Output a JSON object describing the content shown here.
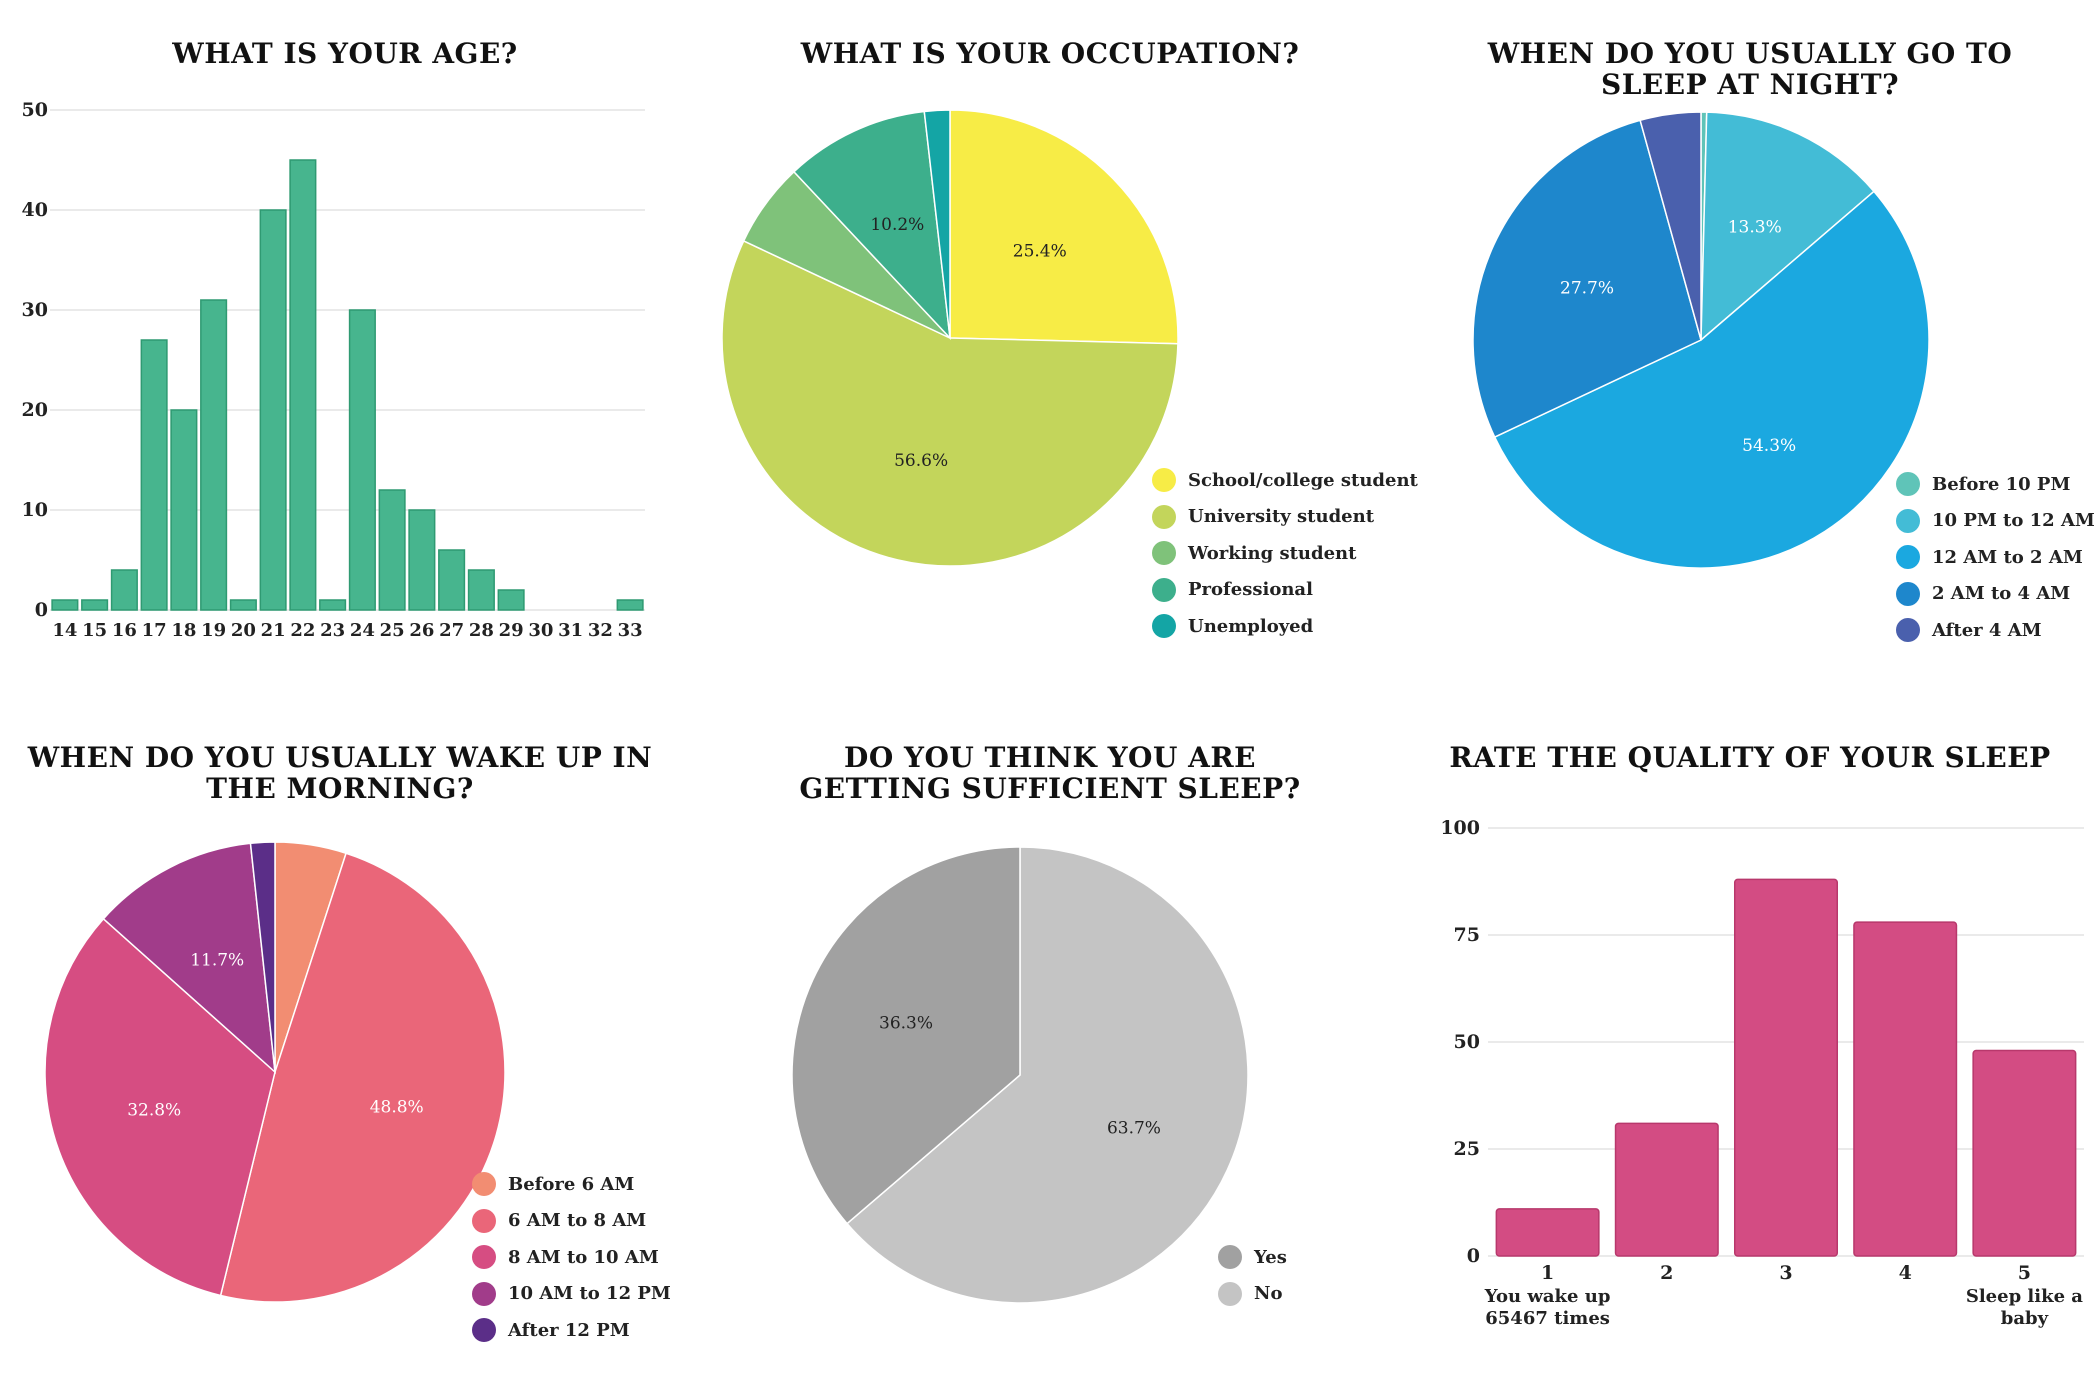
{
  "chart_data": [
    {
      "type": "bar",
      "title": "WHAT IS YOUR AGE?",
      "categories": [
        "14",
        "15",
        "16",
        "17",
        "18",
        "19",
        "20",
        "21",
        "22",
        "23",
        "24",
        "25",
        "26",
        "27",
        "28",
        "29",
        "30",
        "31",
        "32",
        "33"
      ],
      "values": [
        1,
        1,
        4,
        27,
        20,
        31,
        1,
        40,
        45,
        1,
        30,
        12,
        10,
        6,
        4,
        2,
        0,
        0,
        0,
        1
      ],
      "ylim": [
        0,
        50
      ],
      "yticks": [
        0,
        10,
        20,
        30,
        40,
        50
      ],
      "color": "#47b58e",
      "xlabel": "",
      "ylabel": ""
    },
    {
      "type": "pie",
      "title": "WHAT IS YOUR OCCUPATION?",
      "labels": [
        "School/college student",
        "University student",
        "Working student",
        "Professional",
        "Unemployed"
      ],
      "values": [
        25.4,
        56.6,
        6.0,
        10.2,
        1.8
      ],
      "data_labels": [
        "25.4%",
        "56.6%",
        "",
        "10.2%",
        ""
      ],
      "colors": [
        "#f7ec46",
        "#c3d55b",
        "#7fc27a",
        "#3daf8c",
        "#14a5a5"
      ]
    },
    {
      "type": "pie",
      "title": "WHEN DO YOU USUALLY GO TO SLEEP AT NIGHT?",
      "labels": [
        "Before 10 PM",
        "10 PM to 12 AM",
        "12 AM to 2 AM",
        "2 AM to 4 AM",
        "After 4 AM"
      ],
      "values": [
        0.4,
        13.3,
        54.3,
        27.7,
        4.3
      ],
      "data_labels": [
        "",
        "13.3%",
        "54.3%",
        "27.7%",
        ""
      ],
      "colors": [
        "#5fc4b8",
        "#43bcd6",
        "#1ba8e0",
        "#1e87cc",
        "#4a60ad"
      ]
    },
    {
      "type": "pie",
      "title": "WHEN DO YOU USUALLY WAKE UP IN THE MORNING?",
      "labels": [
        "Before 6 AM",
        "6 AM to 8 AM",
        "8 AM to 10 AM",
        "10 AM to 12 PM",
        "After 12 PM"
      ],
      "values": [
        5.0,
        48.8,
        32.8,
        11.7,
        1.7
      ],
      "data_labels": [
        "",
        "48.8%",
        "32.8%",
        "11.7%",
        ""
      ],
      "colors": [
        "#f28d72",
        "#ea6679",
        "#d64d82",
        "#a13c8a",
        "#5b2e88"
      ]
    },
    {
      "type": "pie",
      "title": "DO YOU THINK YOU ARE GETTING SUFFICIENT SLEEP?",
      "labels": [
        "No",
        "Yes"
      ],
      "values": [
        63.7,
        36.3
      ],
      "data_labels": [
        "63.7%",
        "36.3%"
      ],
      "colors": [
        "#c4c4c4",
        "#a1a1a1"
      ],
      "legend_order": [
        1,
        0
      ]
    },
    {
      "type": "bar",
      "title": "RATE THE QUALITY OF YOUR SLEEP",
      "categories": [
        "1",
        "2",
        "3",
        "4",
        "5"
      ],
      "values": [
        11,
        31,
        88,
        78,
        48
      ],
      "ylim": [
        0,
        100
      ],
      "yticks": [
        0,
        25,
        50,
        75,
        100
      ],
      "color": "#d34c83",
      "annotations": [
        {
          "category": "1",
          "text": "You wake up 65467 times"
        },
        {
          "category": "5",
          "text": "Sleep like a baby"
        }
      ],
      "xlabel": "",
      "ylabel": ""
    }
  ]
}
